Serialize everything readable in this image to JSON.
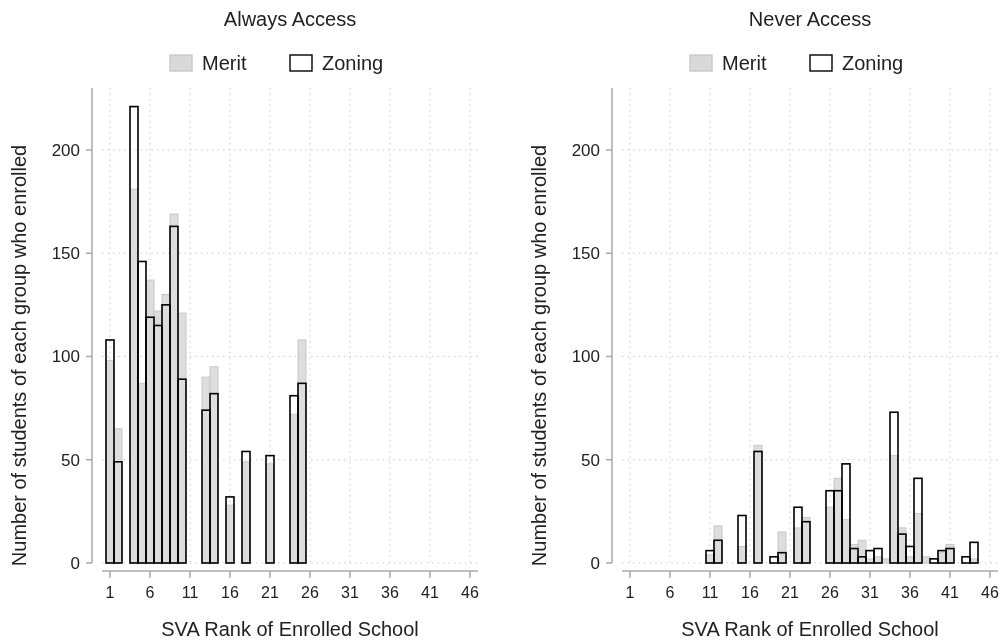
{
  "chart_data": [
    {
      "type": "bar",
      "title": "Always Access",
      "xlabel": "SVA Rank of Enrolled School",
      "ylabel": "Number of students of each group who enrolled",
      "x": [
        1,
        2,
        4,
        5,
        6,
        7,
        8,
        9,
        10,
        13,
        14,
        16,
        18,
        21,
        24,
        25
      ],
      "xlim": [
        0,
        47
      ],
      "xticks": [
        1,
        6,
        11,
        16,
        21,
        26,
        31,
        36,
        41,
        46
      ],
      "ylim": [
        0,
        230
      ],
      "yticks": [
        0,
        50,
        100,
        150,
        200
      ],
      "grid": true,
      "legend": "top",
      "series": [
        {
          "name": "Merit",
          "color": "#d9d9d9",
          "values": [
            98,
            65,
            181,
            87,
            137,
            122,
            130,
            169,
            121,
            90,
            95,
            28,
            49,
            48,
            72,
            108
          ]
        },
        {
          "name": "Zoning",
          "color": "#000000",
          "values": [
            108,
            49,
            221,
            146,
            119,
            115,
            125,
            163,
            89,
            74,
            82,
            32,
            54,
            52,
            81,
            87
          ]
        }
      ]
    },
    {
      "type": "bar",
      "title": "Never Access",
      "xlabel": "SVA Rank of Enrolled School",
      "ylabel": "Number of students of each group who enrolled",
      "x": [
        11,
        12,
        15,
        17,
        19,
        20,
        22,
        23,
        26,
        27,
        28,
        29,
        30,
        31,
        32,
        33,
        34,
        35,
        36,
        37,
        38,
        39,
        40,
        41,
        43,
        44,
        45
      ],
      "xlim": [
        0,
        47
      ],
      "xticks": [
        1,
        6,
        11,
        16,
        21,
        26,
        31,
        36,
        41,
        46
      ],
      "ylim": [
        0,
        230
      ],
      "yticks": [
        0,
        50,
        100,
        150,
        200
      ],
      "grid": true,
      "legend": "top",
      "series": [
        {
          "name": "Merit",
          "color": "#d9d9d9",
          "values": [
            4,
            18,
            8,
            57,
            0,
            15,
            17,
            22,
            27,
            41,
            21,
            9,
            11,
            2,
            3,
            2,
            52,
            17,
            3,
            24,
            3,
            null,
            5,
            9,
            0,
            2,
            0
          ]
        },
        {
          "name": "Zoning",
          "color": "#000000",
          "values": [
            6,
            11,
            23,
            54,
            3,
            5,
            27,
            20,
            35,
            35,
            48,
            7,
            3,
            6,
            7,
            0,
            73,
            14,
            8,
            41,
            0,
            2,
            6,
            7,
            3,
            10,
            0
          ]
        }
      ]
    }
  ]
}
